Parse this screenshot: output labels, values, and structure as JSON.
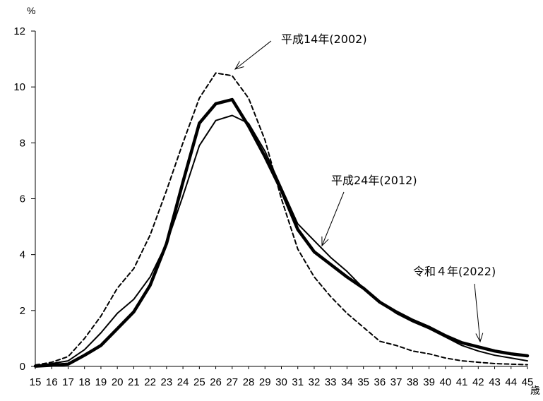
{
  "chart_data": {
    "type": "line",
    "y_unit": "%",
    "x_unit": "歳",
    "ylim": [
      0,
      12
    ],
    "yticks": [
      0,
      2,
      4,
      6,
      8,
      10,
      12
    ],
    "x": [
      15,
      16,
      17,
      18,
      19,
      20,
      21,
      22,
      23,
      24,
      25,
      26,
      27,
      28,
      29,
      30,
      31,
      32,
      33,
      34,
      35,
      36,
      37,
      38,
      39,
      40,
      41,
      42,
      43,
      44,
      45
    ],
    "grid": false,
    "series": [
      {
        "style": "dashed",
        "values": [
          0.05,
          0.15,
          0.35,
          1.0,
          1.8,
          2.8,
          3.5,
          4.7,
          6.3,
          8.0,
          9.6,
          10.5,
          10.4,
          9.6,
          8.1,
          6.0,
          4.2,
          3.2,
          2.5,
          1.9,
          1.4,
          0.9,
          0.75,
          0.55,
          0.45,
          0.3,
          0.2,
          0.15,
          0.1,
          0.08,
          0.06
        ]
      },
      {
        "style": "thin",
        "values": [
          0.02,
          0.1,
          0.2,
          0.6,
          1.2,
          1.9,
          2.4,
          3.2,
          4.4,
          6.1,
          7.9,
          8.8,
          8.98,
          8.7,
          7.7,
          6.4,
          5.1,
          4.5,
          3.9,
          3.4,
          2.8,
          2.3,
          1.9,
          1.6,
          1.35,
          1.05,
          0.75,
          0.55,
          0.4,
          0.3,
          0.2
        ]
      },
      {
        "style": "thick",
        "values": [
          0.01,
          0.04,
          0.08,
          0.4,
          0.75,
          1.35,
          1.95,
          2.9,
          4.4,
          6.6,
          8.7,
          9.4,
          9.55,
          8.6,
          7.5,
          6.3,
          4.9,
          4.1,
          3.65,
          3.2,
          2.8,
          2.3,
          1.95,
          1.65,
          1.4,
          1.1,
          0.85,
          0.7,
          0.55,
          0.45,
          0.38
        ]
      }
    ],
    "annotations": [
      {
        "text": "平成14年(2002)",
        "points_to_x": 26.5
      },
      {
        "text": "平成24年(2012)",
        "points_to_x": 32.5
      },
      {
        "text": "令和４年(2022)",
        "points_to_x": 42
      }
    ]
  }
}
